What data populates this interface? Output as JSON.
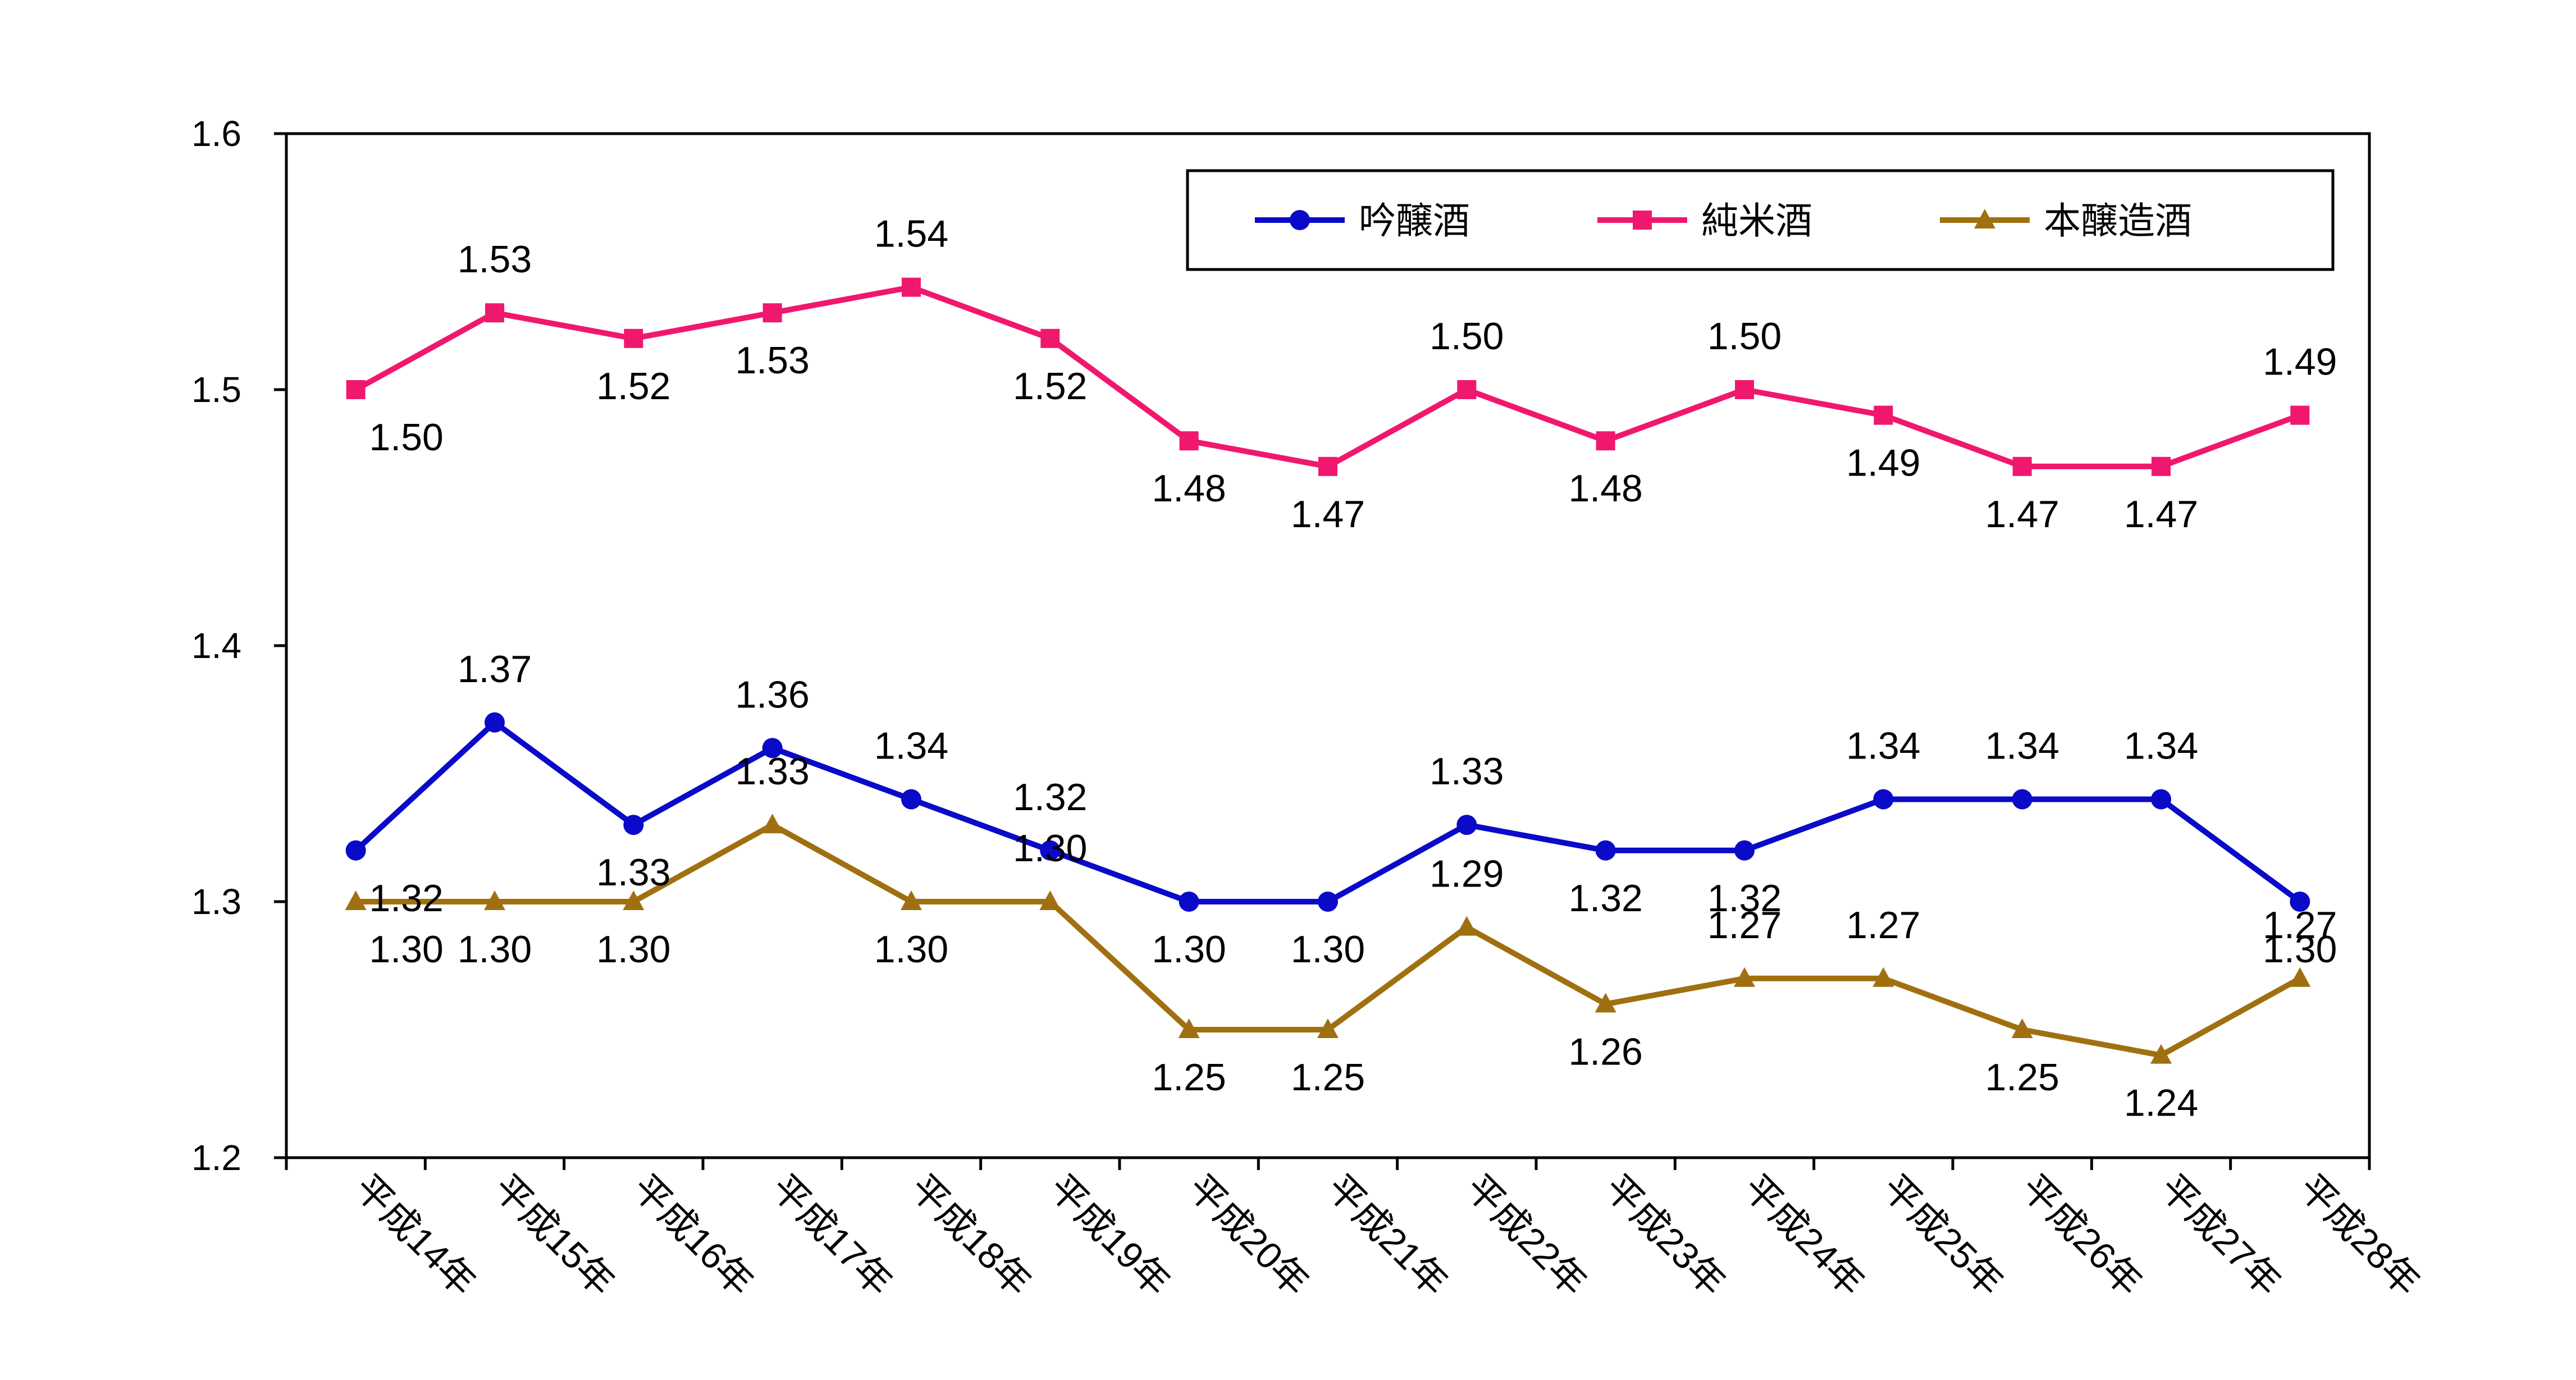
{
  "chart_data": {
    "type": "line",
    "categories": [
      "平成14年",
      "平成15年",
      "平成16年",
      "平成17年",
      "平成18年",
      "平成19年",
      "平成20年",
      "平成21年",
      "平成22年",
      "平成23年",
      "平成24年",
      "平成25年",
      "平成26年",
      "平成27年",
      "平成28年"
    ],
    "ylim": [
      1.2,
      1.6
    ],
    "yticks": [
      "1.2",
      "1.3",
      "1.4",
      "1.5",
      "1.6"
    ],
    "grid": false,
    "legend_position": "top-right",
    "series": [
      {
        "name": "吟醸酒",
        "color": "#0a0ac8",
        "marker": "circle",
        "values": [
          1.32,
          1.37,
          1.33,
          1.36,
          1.34,
          1.32,
          1.3,
          1.3,
          1.33,
          1.32,
          1.32,
          1.34,
          1.34,
          1.34,
          1.3
        ],
        "labels": [
          "1.32",
          "1.37",
          "1.33",
          "1.36",
          "1.34",
          "1.32",
          "1.30",
          "1.30",
          "1.33",
          "1.32",
          "1.32",
          "1.34",
          "1.34",
          "1.34",
          "1.30"
        ]
      },
      {
        "name": "純米酒",
        "color": "#f0186e",
        "marker": "square",
        "values": [
          1.5,
          1.53,
          1.52,
          1.53,
          1.54,
          1.52,
          1.48,
          1.47,
          1.5,
          1.48,
          1.5,
          1.49,
          1.47,
          1.47,
          1.49
        ],
        "labels": [
          "1.50",
          "1.53",
          "1.52",
          "1.53",
          "1.54",
          "1.52",
          "1.48",
          "1.47",
          "1.50",
          "1.48",
          "1.50",
          "1.49",
          "1.47",
          "1.47",
          "1.49"
        ]
      },
      {
        "name": "本醸造酒",
        "color": "#a07010",
        "marker": "triangle",
        "values": [
          1.3,
          1.3,
          1.3,
          1.33,
          1.3,
          1.3,
          1.25,
          1.25,
          1.29,
          1.26,
          1.27,
          1.27,
          1.25,
          1.24,
          1.27
        ],
        "labels": [
          "1.30",
          "1.30",
          "1.30",
          "1.33",
          "1.30",
          "1.30",
          "1.25",
          "1.25",
          "1.29",
          "1.26",
          "1.27",
          "1.27",
          "1.25",
          "1.24",
          "1.27"
        ]
      }
    ]
  }
}
